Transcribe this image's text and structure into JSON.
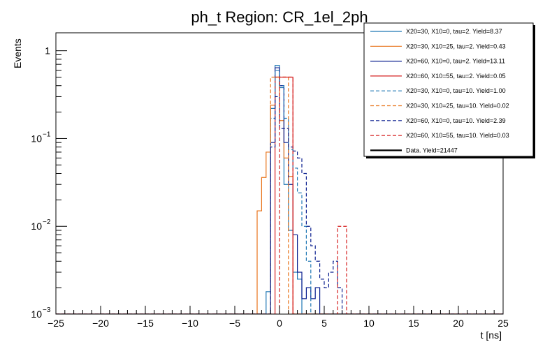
{
  "chart_data": {
    "type": "line",
    "title": "ph_t Region: CR_1el_2ph",
    "xlabel": "t [ns]",
    "ylabel": "Events",
    "xlim": [
      -25,
      25
    ],
    "ylim": [
      0.001,
      1.6
    ],
    "yscale": "log",
    "x_ticks": [
      -25,
      -20,
      -15,
      -10,
      -5,
      0,
      5,
      10,
      15,
      20,
      25
    ],
    "x_tick_labels": [
      "−25",
      "−20",
      "−15",
      "−10",
      "−5",
      "0",
      "5",
      "10",
      "15",
      "20",
      "25"
    ],
    "y_ticks": [
      {
        "value": 1,
        "base": "1",
        "exp": ""
      },
      {
        "value": 0.1,
        "base": "10",
        "exp": "−1"
      },
      {
        "value": 0.01,
        "base": "10",
        "exp": "−2"
      },
      {
        "value": 0.001,
        "base": "10",
        "exp": "−3"
      }
    ],
    "bin_edges": [
      -2.5,
      -2,
      -1.5,
      -1,
      -0.5,
      0,
      0.5,
      1,
      1.5,
      2,
      2.5,
      3,
      3.5,
      4,
      4.5,
      5,
      5.5,
      6,
      6.5,
      7,
      7.5,
      8,
      8.5
    ],
    "series": [
      {
        "name": "X20=30, X10=0, tau=2. Yield=8.37",
        "color": "#1f77b4",
        "dash": false,
        "values": [
          0.001,
          0.001,
          0.0018,
          0.22,
          0.68,
          0.38,
          0.03,
          0.009,
          0.003,
          0.0025,
          0.001,
          0.001,
          0.001,
          0.001,
          0.001,
          0.001,
          0.001,
          0.001,
          0.001,
          0.001,
          0.001,
          0.001
        ]
      },
      {
        "name": "X20=30, X10=25, tau=2. Yield=0.43",
        "color": "#e8731a",
        "dash": false,
        "values": [
          0.015,
          0.036,
          0.07,
          0.24,
          0.5,
          0.16,
          0.06,
          0.037,
          0.001,
          0.001,
          0.001,
          0.001,
          0.001,
          0.001,
          0.001,
          0.001,
          0.001,
          0.001,
          0.001,
          0.001,
          0.001,
          0.001
        ]
      },
      {
        "name": "X20=60, X10=0, tau=2. Yield=13.11",
        "color": "#0a1f8f",
        "dash": false,
        "values": [
          0.001,
          0.001,
          0.001,
          0.09,
          0.64,
          0.4,
          0.09,
          0.03,
          0.008,
          0.003,
          0.0015,
          0.002,
          0.0015,
          0.002,
          0.001,
          0.001,
          0.001,
          0.001,
          0.001,
          0.001,
          0.001,
          0.001
        ]
      },
      {
        "name": "X20=60, X10=55, tau=2. Yield=0.05",
        "color": "#d62020",
        "dash": false,
        "values": [
          0.001,
          0.001,
          0.001,
          0.001,
          0.5,
          0.5,
          0.5,
          0.5,
          0.001,
          0.001,
          0.001,
          0.001,
          0.001,
          0.001,
          0.001,
          0.001,
          0.001,
          0.001,
          0.001,
          0.001,
          0.001,
          0.001
        ]
      },
      {
        "name": "X20=30, X10=0, tau=10. Yield=1.00",
        "color": "#1f77b4",
        "dash": true,
        "values": [
          0.001,
          0.001,
          0.001,
          0.17,
          0.6,
          0.4,
          0.17,
          0.075,
          0.046,
          0.024,
          0.01,
          0.004,
          0.001,
          0.001,
          0.001,
          0.001,
          0.001,
          0.001,
          0.001,
          0.001,
          0.001,
          0.001
        ]
      },
      {
        "name": "X20=30, X10=25, tau=10. Yield=0.02",
        "color": "#e8731a",
        "dash": true,
        "values": [
          0.001,
          0.001,
          0.001,
          0.5,
          0.5,
          0.5,
          0.5,
          0.001,
          0.001,
          0.001,
          0.001,
          0.001,
          0.001,
          0.001,
          0.001,
          0.001,
          0.001,
          0.001,
          0.001,
          0.001,
          0.001,
          0.001
        ]
      },
      {
        "name": "X20=60, X10=0, tau=10. Yield=2.39",
        "color": "#0a1f8f",
        "dash": true,
        "values": [
          0.001,
          0.001,
          0.001,
          0.08,
          0.3,
          0.13,
          0.13,
          0.08,
          0.072,
          0.06,
          0.04,
          0.01,
          0.006,
          0.004,
          0.0025,
          0.002,
          0.003,
          0.004,
          0.002,
          0.001,
          0.001,
          0.001
        ]
      },
      {
        "name": "X20=60, X10=55, tau=10. Yield=0.03",
        "color": "#d62020",
        "dash": true,
        "values": [
          0.001,
          0.001,
          0.001,
          0.001,
          0.001,
          0.5,
          0.5,
          0.5,
          0.001,
          0.001,
          0.001,
          0.001,
          0.001,
          0.001,
          0.001,
          0.001,
          0.001,
          0.001,
          0.01,
          0.01,
          0.001,
          0.001
        ]
      }
    ],
    "data_series": {
      "name": "Data. Yield=21447",
      "color": "#000000",
      "dash": false
    },
    "legend": "top-right"
  }
}
